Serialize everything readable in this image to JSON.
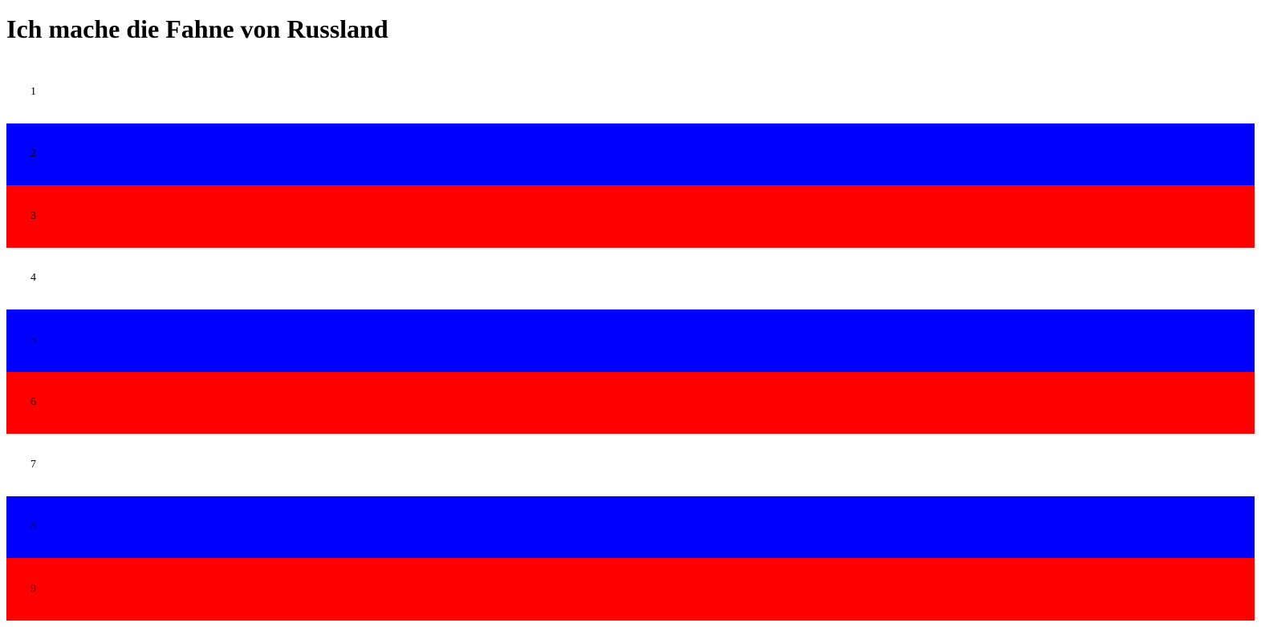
{
  "page": {
    "title": "Ich mache die Fahne von Russland"
  },
  "stripes": [
    {
      "label": "1",
      "color": "#ffffff"
    },
    {
      "label": "2",
      "color": "#0000ff"
    },
    {
      "label": "3",
      "color": "#ff0000"
    },
    {
      "label": "4",
      "color": "#ffffff"
    },
    {
      "label": "5",
      "color": "#0000ff"
    },
    {
      "label": "6",
      "color": "#ff0000"
    },
    {
      "label": "7",
      "color": "#ffffff"
    },
    {
      "label": "8",
      "color": "#0000ff"
    },
    {
      "label": "9",
      "color": "#ff0000"
    }
  ]
}
